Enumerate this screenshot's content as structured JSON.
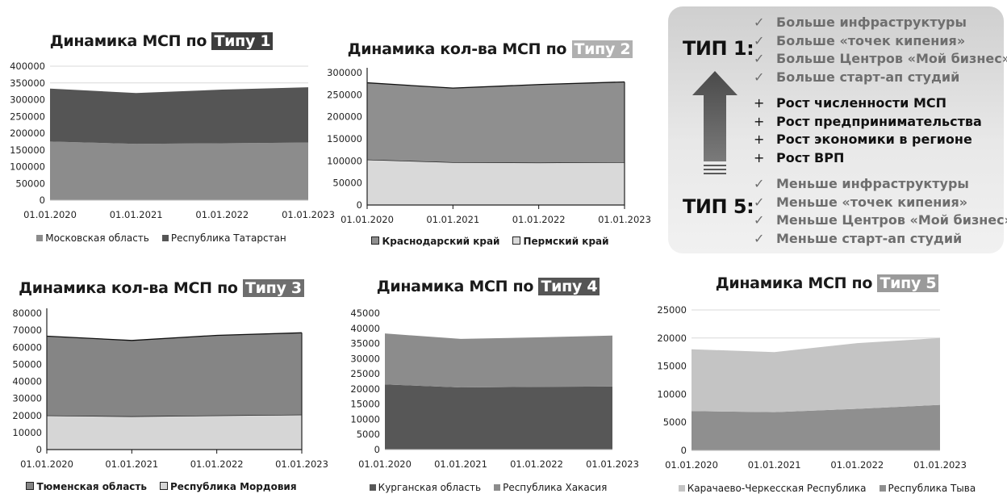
{
  "chart_data": [
    {
      "id": "c1",
      "type": "area",
      "title": "Динамика МСП по ",
      "title_hl": "Типу 1",
      "hl_color": "#3e3e3e",
      "x": [
        "01.01.2020",
        "01.01.2021",
        "01.01.2022",
        "01.01.2023"
      ],
      "ylim": [
        0,
        400000
      ],
      "yticks": [
        0,
        50000,
        100000,
        150000,
        200000,
        250000,
        300000,
        350000,
        400000
      ],
      "grid": true,
      "legend_position": "bottom",
      "legend_bold": false,
      "outline": false,
      "series": [
        {
          "name": "Московская область",
          "values": [
            175000,
            168000,
            170000,
            172000
          ],
          "color": "#8c8c8c"
        },
        {
          "name": "Республика Татарстан",
          "values": [
            158000,
            152000,
            160000,
            165000
          ],
          "color": "#555555"
        }
      ]
    },
    {
      "id": "c2",
      "type": "area",
      "title": "Динамика кол-ва МСП по ",
      "title_hl": "Типу 2",
      "hl_color": "#b0b0b0",
      "x": [
        "01.01.2020",
        "01.01.2021",
        "01.01.2022",
        "01.01.2023"
      ],
      "ylim": [
        0,
        300000
      ],
      "yticks": [
        0,
        50000,
        100000,
        150000,
        200000,
        250000,
        300000
      ],
      "grid": false,
      "legend_position": "bottom",
      "legend_bold": true,
      "outline": true,
      "series": [
        {
          "name": "Пермский край",
          "values": [
            103000,
            97000,
            96000,
            97000
          ],
          "color": "#d9d9d9"
        },
        {
          "name": "Краснодарский край",
          "values": [
            174000,
            168000,
            177000,
            182000
          ],
          "color": "#8f8f8f"
        }
      ]
    },
    {
      "id": "c3",
      "type": "area",
      "title": "Динамика кол-ва МСП по ",
      "title_hl": "Типу 3",
      "hl_color": "#6e6e6e",
      "x": [
        "01.01.2020",
        "01.01.2021",
        "01.01.2022",
        "01.01.2023"
      ],
      "ylim": [
        0,
        80000
      ],
      "yticks": [
        0,
        10000,
        20000,
        30000,
        40000,
        50000,
        60000,
        70000,
        80000
      ],
      "grid": false,
      "legend_position": "bottom",
      "legend_bold": true,
      "outline": true,
      "series": [
        {
          "name": "Республика Мордовия",
          "values": [
            20000,
            19500,
            20000,
            20500
          ],
          "color": "#d6d6d6"
        },
        {
          "name": "Тюменская область",
          "values": [
            46500,
            44500,
            47000,
            48000
          ],
          "color": "#858585"
        }
      ]
    },
    {
      "id": "c4",
      "type": "area",
      "title": "Динамика МСП по ",
      "title_hl": "Типу 4",
      "hl_color": "#555555",
      "x": [
        "01.01.2020",
        "01.01.2021",
        "01.01.2022",
        "01.01.2023"
      ],
      "ylim": [
        0,
        45000
      ],
      "yticks": [
        0,
        5000,
        10000,
        15000,
        20000,
        25000,
        30000,
        35000,
        40000,
        45000
      ],
      "grid": false,
      "legend_position": "bottom",
      "legend_bold": false,
      "outline": false,
      "series": [
        {
          "name": "Курганская область",
          "values": [
            21500,
            20500,
            20700,
            20800
          ],
          "color": "#575757"
        },
        {
          "name": "Республика Хакасия",
          "values": [
            16800,
            16000,
            16300,
            16800
          ],
          "color": "#8c8c8c"
        }
      ]
    },
    {
      "id": "c5",
      "type": "area",
      "title": "Динамика МСП по ",
      "title_hl": "Типу 5",
      "hl_color": "#9a9a9a",
      "x": [
        "01.01.2020",
        "01.01.2021",
        "01.01.2022",
        "01.01.2023"
      ],
      "ylim": [
        0,
        25000
      ],
      "yticks": [
        0,
        5000,
        10000,
        15000,
        20000,
        25000
      ],
      "grid": true,
      "legend_position": "bottom",
      "legend_bold": false,
      "outline": false,
      "series": [
        {
          "name": "Республика Тыва",
          "values": [
            7000,
            6800,
            7400,
            8100
          ],
          "color": "#8f8f8f"
        },
        {
          "name": "Карачаево-Черкесская Республика",
          "values": [
            11000,
            10700,
            11700,
            11900
          ],
          "color": "#c4c4c4"
        }
      ]
    }
  ],
  "legend_order": {
    "c1": [
      "Московская область",
      "Республика Татарстан"
    ],
    "c2": [
      "Краснодарский край",
      "Пермский край"
    ],
    "c3": [
      "Тюменская область",
      "Республика Мордовия"
    ],
    "c4": [
      "Курганская область",
      "Республика Хакасия"
    ],
    "c5": [
      "Карачаево-Черкесская Республика",
      "Республика Тыва"
    ]
  },
  "panel": {
    "type1_label": "ТИП 1:",
    "type5_label": "ТИП 5:",
    "check_mark": "✓",
    "plus_mark": "+",
    "more_items": [
      "Больше инфраструктуры",
      "Больше «точек кипения»",
      "Больше Центров «Мой бизнес»",
      "Больше старт-ап студий"
    ],
    "growth_items": [
      "Рост численности МСП",
      "Рост предпринимательства",
      "Рост экономики в регионе",
      "Рост ВРП"
    ],
    "less_items": [
      "Меньше инфраструктуры",
      "Меньше «точек кипения»",
      "Меньше Центров «Мой бизнес»",
      "Меньше старт-ап студий"
    ],
    "arrow_icon": "up-arrow-icon"
  }
}
